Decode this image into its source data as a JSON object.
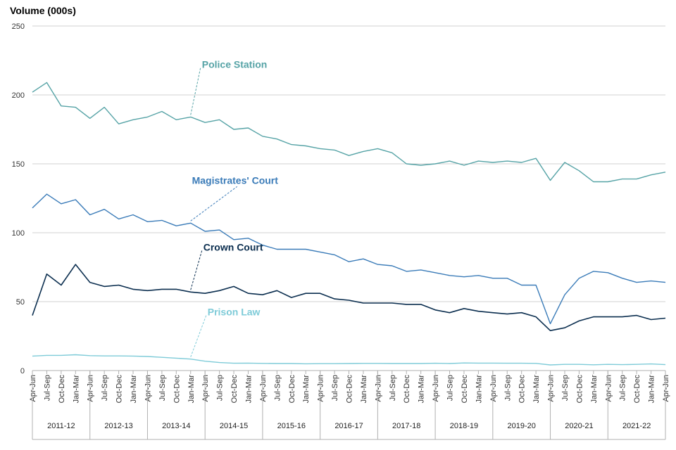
{
  "chart_data": {
    "type": "line",
    "ylabel": "Volume (000s)",
    "ylim": [
      0,
      250
    ],
    "yticks": [
      0,
      50,
      100,
      150,
      200,
      250
    ],
    "grid": true,
    "x": [
      "Apr-Jun",
      "Jul-Sep",
      "Oct-Dec",
      "Jan-Mar",
      "Apr-Jun",
      "Jul-Sep",
      "Oct-Dec",
      "Jan-Mar",
      "Apr-Jun",
      "Jul-Sep",
      "Oct-Dec",
      "Jan-Mar",
      "Apr-Jun",
      "Jul-Sep",
      "Oct-Dec",
      "Jan-Mar",
      "Apr-Jun",
      "Jul-Sep",
      "Oct-Dec",
      "Jan-Mar",
      "Apr-Jun",
      "Jul-Sep",
      "Oct-Dec",
      "Jan-Mar",
      "Apr-Jun",
      "Jul-Sep",
      "Oct-Dec",
      "Jan-Mar",
      "Apr-Jun",
      "Jul-Sep",
      "Oct-Dec",
      "Jan-Mar",
      "Apr-Jun",
      "Jul-Sep",
      "Oct-Dec",
      "Jan-Mar",
      "Apr-Jun",
      "Jul-Sep",
      "Oct-Dec",
      "Jan-Mar",
      "Apr-Jun",
      "Jul-Sep",
      "Oct-Dec",
      "Jan-Mar",
      "Apr-Jun"
    ],
    "years": [
      "2011-12",
      "2012-13",
      "2013-14",
      "2014-15",
      "2015-16",
      "2016-17",
      "2017-18",
      "2018-19",
      "2019-20",
      "2020-21",
      "2021-22"
    ],
    "series": [
      {
        "name": "Police Station",
        "color": "#56a3a6",
        "label_anchor_index": 11,
        "values": [
          202,
          209,
          192,
          191,
          183,
          191,
          179,
          182,
          184,
          188,
          182,
          184,
          180,
          182,
          175,
          176,
          170,
          168,
          164,
          163,
          161,
          160,
          156,
          159,
          161,
          158,
          150,
          149,
          150,
          152,
          149,
          152,
          151,
          152,
          151,
          154,
          138,
          151,
          145,
          137,
          137,
          139,
          139,
          142,
          144
        ]
      },
      {
        "name": "Magistrates' Court",
        "color": "#3a7bb8",
        "label_anchor_index": 11,
        "values": [
          118,
          128,
          121,
          124,
          113,
          117,
          110,
          113,
          108,
          109,
          105,
          107,
          101,
          102,
          95,
          96,
          91,
          88,
          88,
          88,
          86,
          84,
          79,
          81,
          77,
          76,
          72,
          73,
          71,
          69,
          68,
          69,
          67,
          67,
          62,
          62,
          34,
          55,
          67,
          72,
          71,
          67,
          64,
          65,
          64
        ]
      },
      {
        "name": "Crown Court",
        "color": "#0b2e4f",
        "label_anchor_index": 11,
        "values": [
          40,
          70,
          62,
          77,
          64,
          61,
          62,
          59,
          58,
          59,
          59,
          57,
          56,
          58,
          61,
          56,
          55,
          58,
          53,
          56,
          56,
          52,
          51,
          49,
          49,
          49,
          48,
          48,
          44,
          42,
          45,
          43,
          42,
          41,
          42,
          39,
          29,
          31,
          36,
          39,
          39,
          39,
          40,
          37,
          38
        ]
      },
      {
        "name": "Prison Law",
        "color": "#7ecbd8",
        "label_anchor_index": 11,
        "values": [
          10.5,
          11,
          11,
          11.5,
          10.8,
          10.6,
          10.6,
          10.5,
          10.2,
          9.6,
          9,
          8.3,
          6.8,
          5.8,
          5.3,
          5.4,
          5.2,
          5.1,
          5.1,
          4.9,
          5,
          5,
          5.1,
          5.2,
          5.2,
          5.1,
          5.1,
          5.1,
          5.3,
          5.1,
          5.5,
          5.4,
          5.4,
          5.3,
          5.3,
          5.2,
          4.1,
          4.5,
          4.5,
          4.2,
          4.5,
          4.3,
          4.5,
          4.8,
          4.3
        ]
      }
    ]
  }
}
